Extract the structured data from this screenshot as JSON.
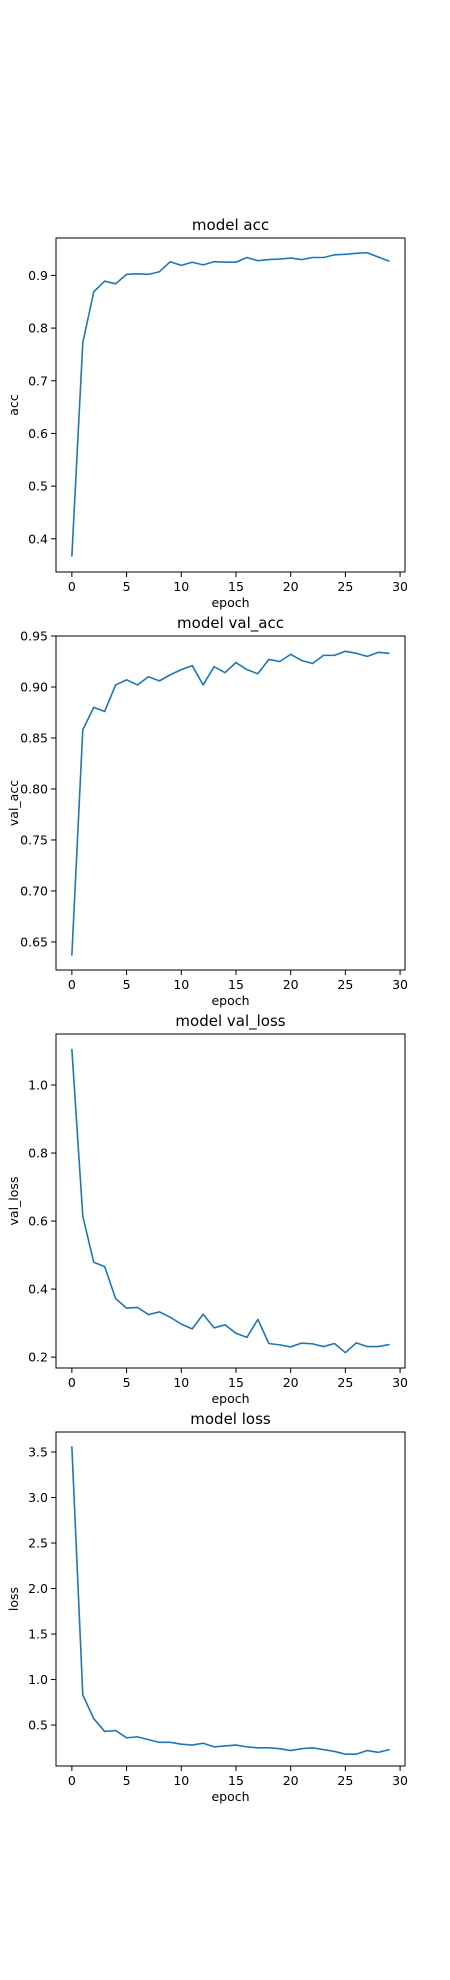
{
  "charts": {
    "accent_color": "#1f77b4",
    "xlabel": "epoch"
  },
  "chart_data": [
    {
      "type": "line",
      "title": "model acc",
      "xlabel": "epoch",
      "ylabel": "acc",
      "xlim": [
        -1.45,
        30.45
      ],
      "ylim": [
        0.337,
        0.971
      ],
      "xticks": [
        0,
        5,
        10,
        15,
        20,
        25,
        30
      ],
      "yticks": [
        0.4,
        0.5,
        0.6,
        0.7,
        0.8,
        0.9
      ],
      "ytick_labels": [
        "0.4",
        "0.5",
        "0.6",
        "0.7",
        "0.8",
        "0.9"
      ],
      "grid": false,
      "series": [
        {
          "x": [
            0,
            1,
            2,
            3,
            4,
            5,
            6,
            7,
            8,
            9,
            10,
            11,
            12,
            13,
            14,
            15,
            16,
            17,
            18,
            19,
            20,
            21,
            22,
            23,
            24,
            25,
            26,
            27,
            28,
            29
          ],
          "values": [
            0.367,
            0.772,
            0.869,
            0.889,
            0.884,
            0.902,
            0.903,
            0.902,
            0.907,
            0.926,
            0.919,
            0.925,
            0.92,
            0.926,
            0.925,
            0.925,
            0.934,
            0.928,
            0.93,
            0.931,
            0.933,
            0.93,
            0.934,
            0.934,
            0.939,
            0.94,
            0.942,
            0.943,
            0.935,
            0.927
          ]
        }
      ]
    },
    {
      "type": "line",
      "title": "model val_acc",
      "xlabel": "epoch",
      "ylabel": "val_acc",
      "xlim": [
        -1.45,
        30.45
      ],
      "ylim": [
        0.6225,
        0.95
      ],
      "xticks": [
        0,
        5,
        10,
        15,
        20,
        25,
        30
      ],
      "yticks": [
        0.65,
        0.7,
        0.75,
        0.8,
        0.85,
        0.9,
        0.95
      ],
      "ytick_labels": [
        "0.65",
        "0.70",
        "0.75",
        "0.80",
        "0.85",
        "0.90",
        "0.95"
      ],
      "grid": false,
      "series": [
        {
          "x": [
            0,
            1,
            2,
            3,
            4,
            5,
            6,
            7,
            8,
            9,
            10,
            11,
            12,
            13,
            14,
            15,
            16,
            17,
            18,
            19,
            20,
            21,
            22,
            23,
            24,
            25,
            26,
            27,
            28,
            29
          ],
          "values": [
            0.637,
            0.858,
            0.88,
            0.876,
            0.902,
            0.907,
            0.902,
            0.91,
            0.906,
            0.912,
            0.917,
            0.921,
            0.902,
            0.92,
            0.914,
            0.924,
            0.917,
            0.913,
            0.927,
            0.925,
            0.932,
            0.926,
            0.923,
            0.931,
            0.931,
            0.935,
            0.933,
            0.93,
            0.934,
            0.933
          ]
        }
      ]
    },
    {
      "type": "line",
      "title": "model val_loss",
      "xlabel": "epoch",
      "ylabel": "val_loss",
      "xlim": [
        -1.45,
        30.45
      ],
      "ylim": [
        0.168,
        1.15
      ],
      "xticks": [
        0,
        5,
        10,
        15,
        20,
        25,
        30
      ],
      "yticks": [
        0.2,
        0.4,
        0.6,
        0.8,
        1.0
      ],
      "ytick_labels": [
        "0.2",
        "0.4",
        "0.6",
        "0.8",
        "1.0"
      ],
      "grid": false,
      "series": [
        {
          "x": [
            0,
            1,
            2,
            3,
            4,
            5,
            6,
            7,
            8,
            9,
            10,
            11,
            12,
            13,
            14,
            15,
            16,
            17,
            18,
            19,
            20,
            21,
            22,
            23,
            24,
            25,
            26,
            27,
            28,
            29
          ],
          "values": [
            1.105,
            0.614,
            0.479,
            0.466,
            0.372,
            0.344,
            0.346,
            0.325,
            0.333,
            0.317,
            0.297,
            0.283,
            0.326,
            0.286,
            0.295,
            0.27,
            0.258,
            0.311,
            0.24,
            0.236,
            0.23,
            0.241,
            0.239,
            0.231,
            0.24,
            0.213,
            0.242,
            0.231,
            0.231,
            0.237
          ]
        }
      ]
    },
    {
      "type": "line",
      "title": "model loss",
      "xlabel": "epoch",
      "ylabel": "loss",
      "xlim": [
        -1.45,
        30.45
      ],
      "ylim": [
        0.05,
        3.72
      ],
      "xticks": [
        0,
        5,
        10,
        15,
        20,
        25,
        30
      ],
      "yticks": [
        0.5,
        1.0,
        1.5,
        2.0,
        2.5,
        3.0,
        3.5
      ],
      "ytick_labels": [
        "0.5",
        "1.0",
        "1.5",
        "2.0",
        "2.5",
        "3.0",
        "3.5"
      ],
      "grid": false,
      "series": [
        {
          "x": [
            0,
            1,
            2,
            3,
            4,
            5,
            6,
            7,
            8,
            9,
            10,
            11,
            12,
            13,
            14,
            15,
            16,
            17,
            18,
            19,
            20,
            21,
            22,
            23,
            24,
            25,
            26,
            27,
            28,
            29
          ],
          "values": [
            3.56,
            0.83,
            0.57,
            0.43,
            0.44,
            0.36,
            0.37,
            0.34,
            0.31,
            0.31,
            0.29,
            0.28,
            0.3,
            0.26,
            0.27,
            0.28,
            0.26,
            0.25,
            0.25,
            0.24,
            0.22,
            0.24,
            0.25,
            0.23,
            0.21,
            0.18,
            0.18,
            0.22,
            0.2,
            0.23
          ]
        }
      ]
    }
  ]
}
